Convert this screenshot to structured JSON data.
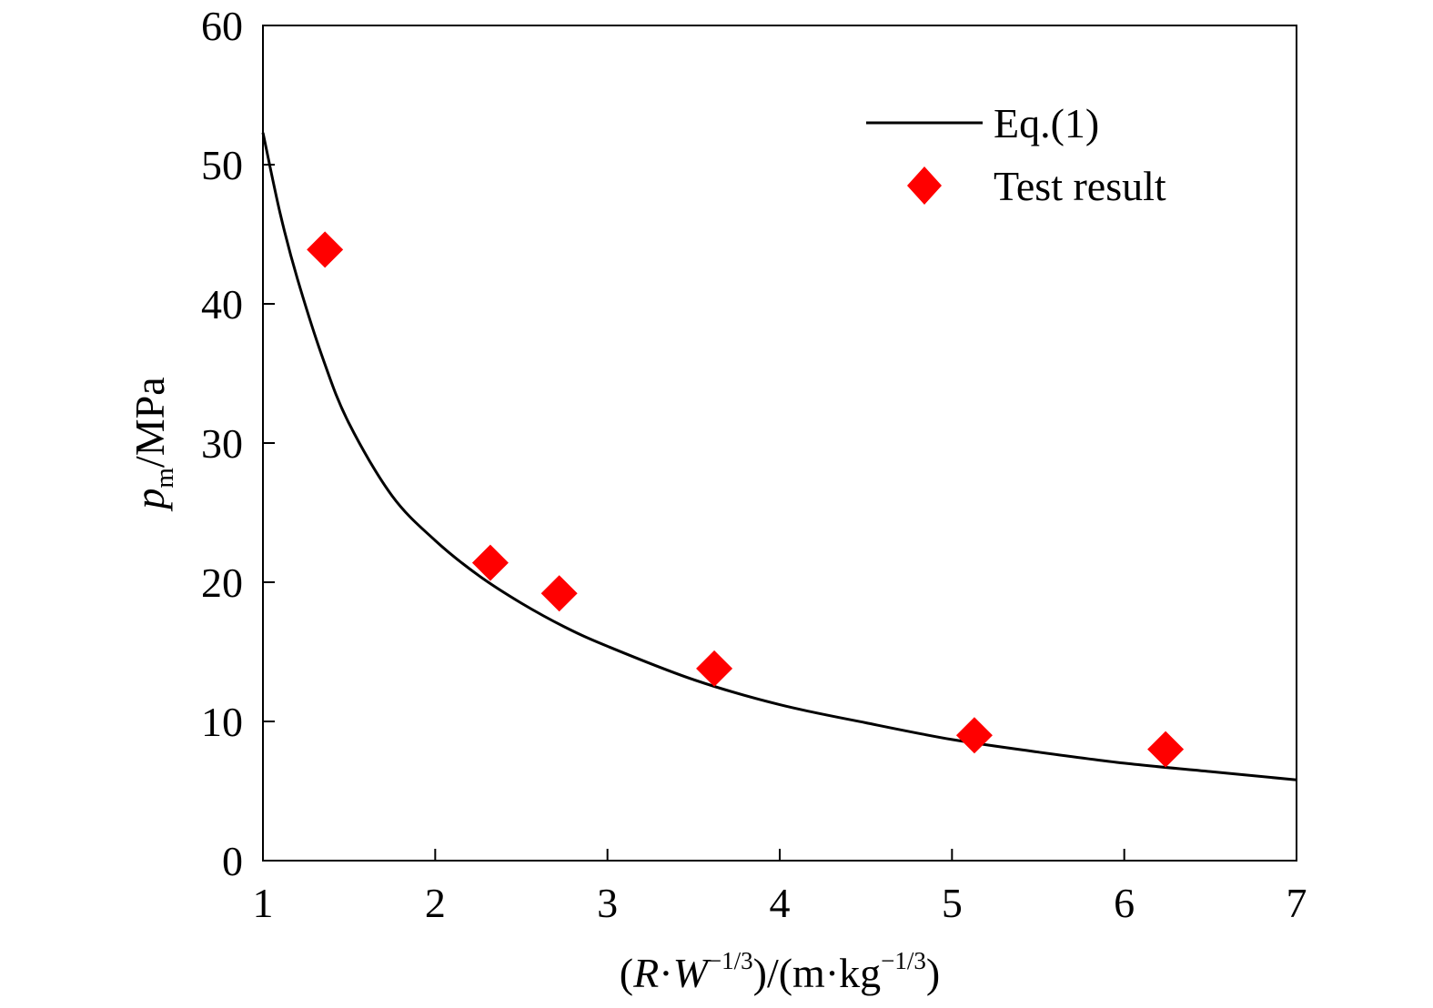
{
  "chart_data": {
    "type": "scatter",
    "xlabel": {
      "open": "(",
      "var_r": "R",
      "dot1": "·",
      "var_w": "W",
      "exp1": "−1/3",
      "mid": ")/(m·kg",
      "exp2": "−1/3",
      "close": ")"
    },
    "ylabel": {
      "var_p": "p",
      "sub_m": "m",
      "unit": "/MPa"
    },
    "xlim": [
      1,
      7
    ],
    "ylim": [
      0,
      60
    ],
    "x_ticks": [
      1,
      2,
      3,
      4,
      5,
      6,
      7
    ],
    "y_ticks": [
      0,
      10,
      20,
      30,
      40,
      50,
      60
    ],
    "grid": false,
    "legend_position": "top-right",
    "series": [
      {
        "name": "Eq.(1)",
        "kind": "line",
        "color": "#000000",
        "x": [
          1.0,
          1.1,
          1.2,
          1.35,
          1.5,
          1.75,
          2.0,
          2.25,
          2.5,
          2.75,
          3.0,
          3.5,
          4.0,
          4.5,
          5.0,
          5.5,
          6.0,
          6.5,
          7.0
        ],
        "y": [
          52.3,
          46.5,
          41.8,
          36.0,
          31.4,
          26.2,
          23.0,
          20.5,
          18.5,
          16.8,
          15.4,
          13.0,
          11.2,
          9.9,
          8.7,
          7.8,
          7.0,
          6.4,
          5.8
        ]
      },
      {
        "name": "Test result",
        "kind": "scatter",
        "marker": "diamond",
        "color": "#ff0000",
        "x": [
          1.36,
          2.32,
          2.72,
          3.62,
          5.13,
          6.24
        ],
        "y": [
          43.9,
          21.4,
          19.2,
          13.8,
          9.0,
          8.0
        ]
      }
    ]
  }
}
